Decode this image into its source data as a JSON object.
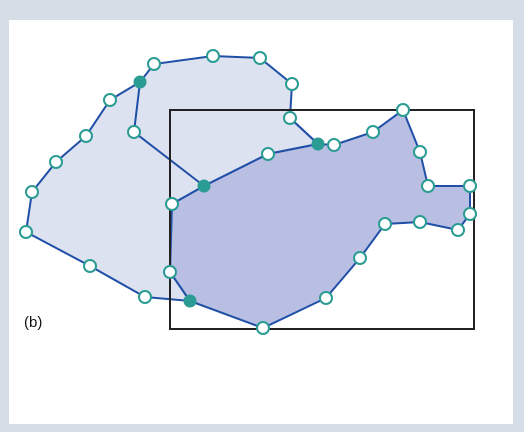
{
  "figure": {
    "panel_label": "(b)"
  },
  "colors": {
    "background_frame": "#d5dde6",
    "panel": "#ffffff",
    "left_region_fill": "#dde2f1",
    "right_region_fill": "#b8bfe3",
    "polygon_stroke": "#1f4fa6",
    "rectangle_stroke": "#222222",
    "vertex_open_fill": "#ffffff",
    "vertex_open_stroke": "#2b9c94",
    "vertex_filled_fill": "#2b9c94"
  },
  "icons": {
    "open_vertex": "circle-outline",
    "intersection_vertex": "filled-circle"
  }
}
